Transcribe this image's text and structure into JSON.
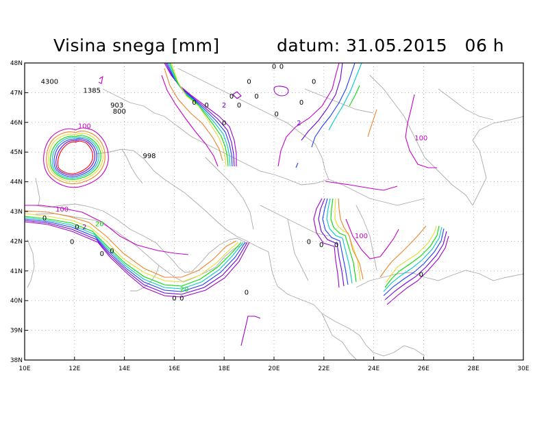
{
  "header": {
    "title": "Visina snega [mm]",
    "date_label": "datum: 31.05.2015",
    "hour_label": "06 h"
  },
  "axes": {
    "x_ticks": [
      "10E",
      "12E",
      "14E",
      "16E",
      "18E",
      "20E",
      "22E",
      "24E",
      "26E",
      "28E",
      "30E"
    ],
    "y_ticks": [
      "38N",
      "39N",
      "40N",
      "41N",
      "42N",
      "43N",
      "44N",
      "45N",
      "46N",
      "47N",
      "48N"
    ],
    "x_range": [
      10,
      30
    ],
    "y_range": [
      38,
      48
    ],
    "grid": "dotted"
  },
  "contour_levels": [
    {
      "value": "0",
      "color": "#a000c8"
    },
    {
      "value": "2",
      "color": "#6e00dc"
    },
    {
      "value": "5",
      "color": "#1e3cff"
    },
    {
      "value": "10",
      "color": "#00c8c8"
    },
    {
      "value": "20",
      "color": "#00dc00"
    },
    {
      "value": "50",
      "color": "#e6dc32"
    },
    {
      "value": "80",
      "color": "#f08228"
    },
    {
      "value": "100",
      "color": "#c800c8"
    }
  ],
  "labels": [
    {
      "text": "0",
      "lon": 20.0,
      "lat": 47.8
    },
    {
      "text": "0",
      "lon": 20.3,
      "lat": 47.8
    },
    {
      "text": "4300",
      "lon": 11.0,
      "lat": 47.3
    },
    {
      "text": "0",
      "lon": 19.0,
      "lat": 47.3
    },
    {
      "text": "0",
      "lon": 21.6,
      "lat": 47.3
    },
    {
      "text": "1385",
      "lon": 12.7,
      "lat": 47.0
    },
    {
      "text": "0",
      "lon": 16.8,
      "lat": 46.6
    },
    {
      "text": "0",
      "lon": 18.3,
      "lat": 46.8
    },
    {
      "text": "0",
      "lon": 19.3,
      "lat": 46.8
    },
    {
      "text": "0",
      "lon": 17.3,
      "lat": 46.5
    },
    {
      "text": "2",
      "lon": 18.0,
      "lat": 46.5
    },
    {
      "text": "0",
      "lon": 18.6,
      "lat": 46.5
    },
    {
      "text": "0",
      "lon": 21.1,
      "lat": 46.6
    },
    {
      "text": "903",
      "lon": 13.7,
      "lat": 46.5
    },
    {
      "text": "800",
      "lon": 13.8,
      "lat": 46.3
    },
    {
      "text": "0",
      "lon": 20.1,
      "lat": 46.2
    },
    {
      "text": "0",
      "lon": 18.0,
      "lat": 45.9
    },
    {
      "text": "2",
      "lon": 21.0,
      "lat": 45.9
    },
    {
      "text": "100",
      "lon": 12.4,
      "lat": 45.8
    },
    {
      "text": "100",
      "lon": 25.9,
      "lat": 45.4
    },
    {
      "text": "998",
      "lon": 15.0,
      "lat": 44.8
    },
    {
      "text": "100",
      "lon": 11.5,
      "lat": 43.0
    },
    {
      "text": "2",
      "lon": 12.4,
      "lat": 42.4
    },
    {
      "text": "20",
      "lon": 13.0,
      "lat": 42.5
    },
    {
      "text": "0",
      "lon": 10.8,
      "lat": 42.7
    },
    {
      "text": "0",
      "lon": 12.1,
      "lat": 42.4
    },
    {
      "text": "100",
      "lon": 23.5,
      "lat": 42.1
    },
    {
      "text": "0",
      "lon": 11.9,
      "lat": 41.9
    },
    {
      "text": "0",
      "lon": 21.4,
      "lat": 41.9
    },
    {
      "text": "0",
      "lon": 21.9,
      "lat": 41.8
    },
    {
      "text": "0",
      "lon": 22.5,
      "lat": 41.8
    },
    {
      "text": "0",
      "lon": 13.1,
      "lat": 41.5
    },
    {
      "text": "0",
      "lon": 13.5,
      "lat": 41.6
    },
    {
      "text": "0",
      "lon": 25.9,
      "lat": 40.8
    },
    {
      "text": "20",
      "lon": 16.4,
      "lat": 40.3
    },
    {
      "text": "0",
      "lon": 18.9,
      "lat": 40.2
    },
    {
      "text": "0",
      "lon": 16.0,
      "lat": 40.0
    },
    {
      "text": "0",
      "lon": 16.3,
      "lat": 40.0
    }
  ]
}
